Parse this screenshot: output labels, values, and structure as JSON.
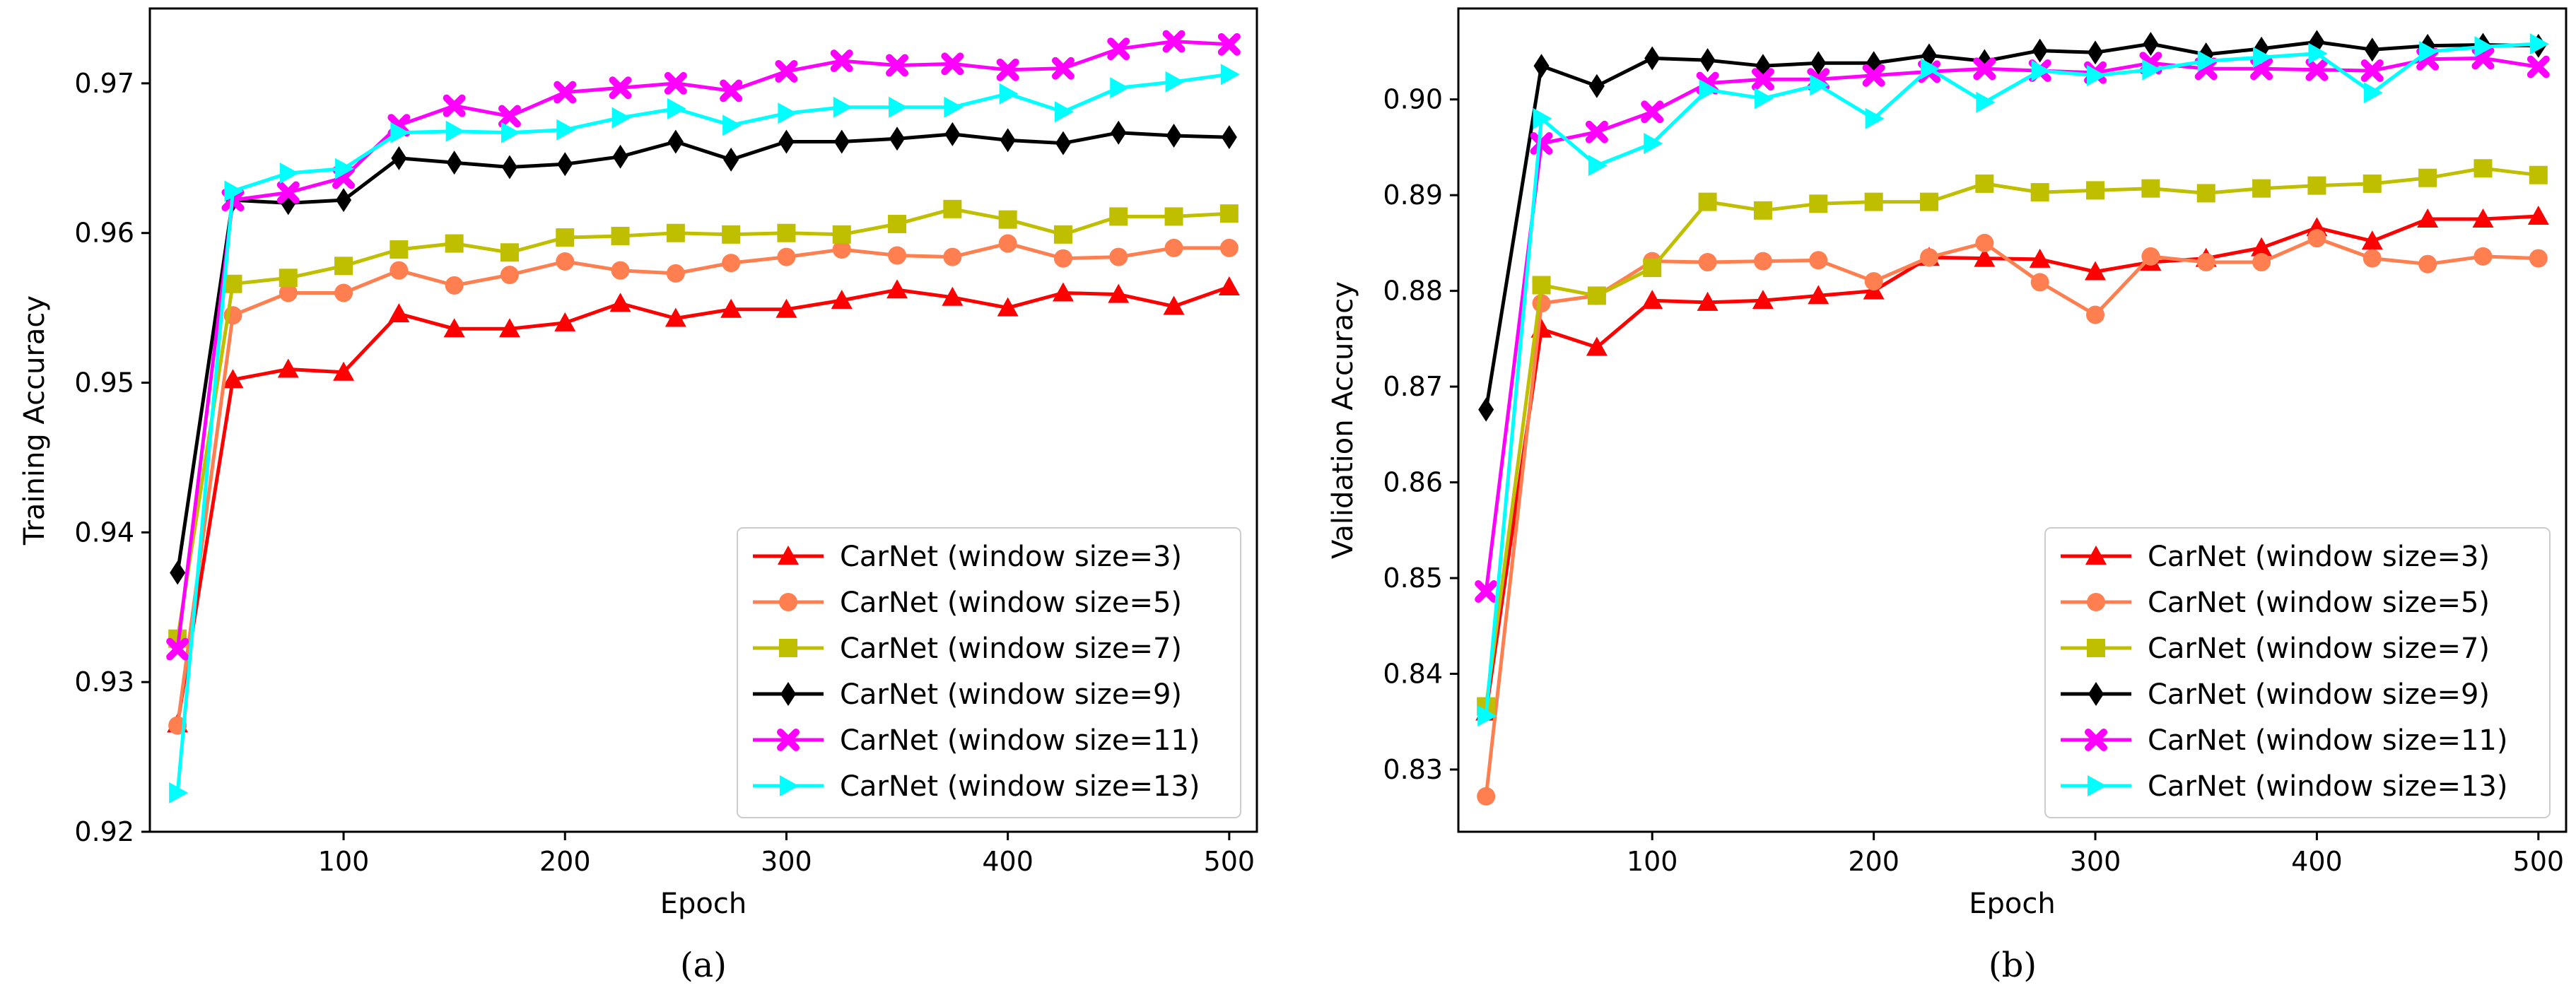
{
  "chart_data": [
    {
      "panel_caption": "(a)",
      "type": "line",
      "xlabel": "Epoch",
      "ylabel": "Training Accuracy",
      "xlim": [
        12.5,
        512.5
      ],
      "ylim": [
        0.92,
        0.975
      ],
      "x_ticks": [
        100,
        200,
        300,
        400,
        500
      ],
      "y_ticks": [
        0.92,
        0.93,
        0.94,
        0.95,
        0.96,
        0.97
      ],
      "y_tick_labels": [
        "0.92",
        "0.93",
        "0.94",
        "0.95",
        "0.96",
        "0.97"
      ],
      "legend_position": "lower-right",
      "x": [
        25,
        50,
        75,
        100,
        125,
        150,
        175,
        200,
        225,
        250,
        275,
        300,
        325,
        350,
        375,
        400,
        425,
        450,
        475,
        500
      ],
      "series": [
        {
          "name": "CarNet (window size=3)",
          "color": "#ff0000",
          "marker": "triangle",
          "values": [
            0.9272,
            0.9502,
            0.9509,
            0.9507,
            0.9546,
            0.9536,
            0.9536,
            0.954,
            0.9553,
            0.9543,
            0.9549,
            0.9549,
            0.9555,
            0.9562,
            0.9557,
            0.955,
            0.956,
            0.9559,
            0.9551,
            0.9564
          ]
        },
        {
          "name": "CarNet (window size=5)",
          "color": "#ff7f50",
          "marker": "circle",
          "values": [
            0.9271,
            0.9545,
            0.956,
            0.956,
            0.9575,
            0.9565,
            0.9572,
            0.9581,
            0.9575,
            0.9573,
            0.958,
            0.9584,
            0.9589,
            0.9585,
            0.9584,
            0.9593,
            0.9583,
            0.9584,
            0.959,
            0.959
          ]
        },
        {
          "name": "CarNet (window size=7)",
          "color": "#bfbf00",
          "marker": "square",
          "values": [
            0.9329,
            0.9566,
            0.957,
            0.9578,
            0.9589,
            0.9593,
            0.9587,
            0.9597,
            0.9598,
            0.96,
            0.9599,
            0.96,
            0.9599,
            0.9606,
            0.9616,
            0.9609,
            0.9599,
            0.9611,
            0.9611,
            0.9613
          ]
        },
        {
          "name": "CarNet (window size=9)",
          "color": "#000000",
          "marker": "diamond",
          "values": [
            0.9373,
            0.9622,
            0.962,
            0.9622,
            0.965,
            0.9647,
            0.9644,
            0.9646,
            0.9651,
            0.9661,
            0.9649,
            0.9661,
            0.9661,
            0.9663,
            0.9666,
            0.9662,
            0.966,
            0.9667,
            0.9665,
            0.9664
          ]
        },
        {
          "name": "CarNet (window size=11)",
          "color": "#ff00ff",
          "marker": "x",
          "values": [
            0.9322,
            0.9622,
            0.9627,
            0.9637,
            0.9672,
            0.9685,
            0.9678,
            0.9694,
            0.9697,
            0.97,
            0.9695,
            0.9708,
            0.9715,
            0.9712,
            0.9713,
            0.9709,
            0.971,
            0.9723,
            0.9728,
            0.9726
          ]
        },
        {
          "name": "CarNet (window size=13)",
          "color": "#00ffff",
          "marker": "triangle-right",
          "values": [
            0.9226,
            0.9628,
            0.964,
            0.9643,
            0.9667,
            0.9668,
            0.9667,
            0.9669,
            0.9677,
            0.9683,
            0.9672,
            0.968,
            0.9684,
            0.9684,
            0.9684,
            0.9693,
            0.9681,
            0.9697,
            0.9701,
            0.9706
          ]
        }
      ]
    },
    {
      "panel_caption": "(b)",
      "type": "line",
      "xlabel": "Epoch",
      "ylabel": "Validation Accuracy",
      "xlim": [
        12.5,
        512.5
      ],
      "ylim": [
        0.8235,
        0.9095
      ],
      "x_ticks": [
        100,
        200,
        300,
        400,
        500
      ],
      "y_ticks": [
        0.83,
        0.84,
        0.85,
        0.86,
        0.87,
        0.88,
        0.89,
        0.9
      ],
      "y_tick_labels": [
        "0.83",
        "0.84",
        "0.85",
        "0.86",
        "0.87",
        "0.88",
        "0.89",
        "0.90"
      ],
      "legend_position": "lower-right",
      "x": [
        25,
        50,
        75,
        100,
        125,
        150,
        175,
        200,
        225,
        250,
        275,
        300,
        325,
        350,
        375,
        400,
        425,
        450,
        475,
        500
      ],
      "series": [
        {
          "name": "CarNet (window size=3)",
          "color": "#ff0000",
          "marker": "triangle",
          "values": [
            0.836,
            0.876,
            0.8741,
            0.879,
            0.8788,
            0.879,
            0.8795,
            0.88,
            0.8835,
            0.8834,
            0.8833,
            0.882,
            0.883,
            0.8834,
            0.8845,
            0.8866,
            0.8852,
            0.8875,
            0.8875,
            0.8878
          ]
        },
        {
          "name": "CarNet (window size=5)",
          "color": "#ff7f50",
          "marker": "circle",
          "values": [
            0.8272,
            0.8787,
            0.8795,
            0.8831,
            0.883,
            0.8831,
            0.8832,
            0.881,
            0.8835,
            0.885,
            0.8809,
            0.8775,
            0.8836,
            0.883,
            0.883,
            0.8855,
            0.8834,
            0.8828,
            0.8836,
            0.8834
          ]
        },
        {
          "name": "CarNet (window size=7)",
          "color": "#bfbf00",
          "marker": "square",
          "values": [
            0.8366,
            0.8806,
            0.8795,
            0.8824,
            0.8893,
            0.8884,
            0.8891,
            0.8893,
            0.8893,
            0.8912,
            0.8903,
            0.8905,
            0.8907,
            0.8902,
            0.8907,
            0.891,
            0.8912,
            0.8918,
            0.8928,
            0.8921
          ]
        },
        {
          "name": "CarNet (window size=9)",
          "color": "#000000",
          "marker": "diamond",
          "values": [
            0.8676,
            0.9035,
            0.9014,
            0.9043,
            0.9041,
            0.9035,
            0.9038,
            0.9038,
            0.9046,
            0.904,
            0.9051,
            0.9049,
            0.9058,
            0.9047,
            0.9053,
            0.906,
            0.9052,
            0.9056,
            0.9057,
            0.9056
          ]
        },
        {
          "name": "CarNet (window size=11)",
          "color": "#ff00ff",
          "marker": "x",
          "values": [
            0.8486,
            0.8954,
            0.8966,
            0.8987,
            0.9017,
            0.9021,
            0.9021,
            0.9025,
            0.9029,
            0.9032,
            0.903,
            0.9028,
            0.9038,
            0.9032,
            0.9032,
            0.9031,
            0.903,
            0.9042,
            0.9043,
            0.9034
          ]
        },
        {
          "name": "CarNet (window size=13)",
          "color": "#00ffff",
          "marker": "triangle-right",
          "values": [
            0.8356,
            0.898,
            0.8931,
            0.8954,
            0.901,
            0.9001,
            0.9015,
            0.898,
            0.9032,
            0.8997,
            0.903,
            0.9025,
            0.9031,
            0.904,
            0.9044,
            0.9048,
            0.9007,
            0.905,
            0.9055,
            0.9058
          ]
        }
      ]
    }
  ]
}
